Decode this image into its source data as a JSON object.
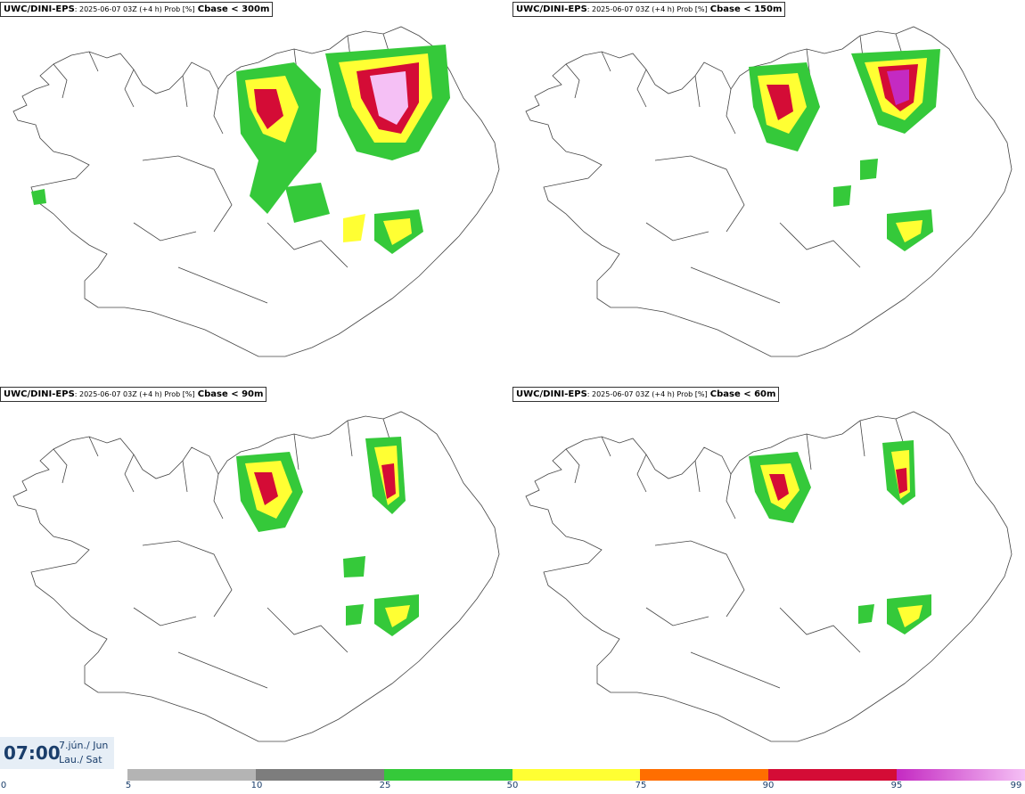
{
  "panels": [
    {
      "model": "UWC/DINI-EPS",
      "run": ": 2025-06-07 03Z (+4 h) Prob [%]",
      "threshold": "Cbase < 300m"
    },
    {
      "model": "UWC/DINI-EPS",
      "run": ": 2025-06-07 03Z (+4 h) Prob [%]",
      "threshold": "Cbase < 150m"
    },
    {
      "model": "UWC/DINI-EPS",
      "run": ": 2025-06-07 03Z (+4 h) Prob [%]",
      "threshold": "Cbase < 90m"
    },
    {
      "model": "UWC/DINI-EPS",
      "run": ": 2025-06-07 03Z (+4 h) Prob [%]",
      "threshold": "Cbase < 60m"
    }
  ],
  "time": {
    "hour": "07:00",
    "date_line": "7.jún./ Jun",
    "day_line": "Lau./ Sat"
  },
  "colorbar": {
    "ticks": [
      "0",
      "5",
      "10",
      "25",
      "50",
      "75",
      "90",
      "95",
      "99"
    ],
    "colors": [
      "#ffffff",
      "#b4b4b4",
      "#7d7d7d",
      "#35c93a",
      "#ffff33",
      "#ff6e00",
      "#d40c36",
      "#c42ac2",
      "#f5c0f5"
    ]
  }
}
